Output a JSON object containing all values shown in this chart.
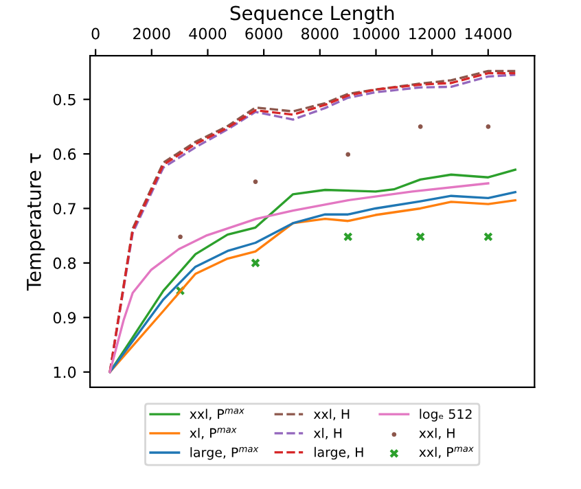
{
  "chart_data": {
    "type": "line",
    "xlabel": "Sequence Length",
    "ylabel": "Temperature τ",
    "xlim": [
      -196,
      15654
    ],
    "ylim": [
      1.028,
      0.42
    ],
    "xticks": [
      0,
      2000,
      4000,
      6000,
      8000,
      10000,
      12000,
      14000
    ],
    "yticks": [
      0.5,
      0.6,
      0.7,
      0.8,
      0.9,
      {
        "value": 1.0,
        "label": "1.0"
      }
    ],
    "grid": false,
    "legend": "bottom",
    "tick_labels": "xy",
    "series": [
      {
        "name": "xxl, P$^{max}$",
        "color": "#2ca02c",
        "marker": "none",
        "line_style": "solid",
        "x": [
          512,
          2418,
          3562,
          4706,
          5703,
          7042,
          8186,
          9984,
          10637,
          11585,
          12680,
          14003,
          14967
        ],
        "values": [
          1.0,
          0.851,
          0.784,
          0.748,
          0.735,
          0.674,
          0.666,
          0.669,
          0.665,
          0.647,
          0.638,
          0.643,
          0.629
        ]
      },
      {
        "name": "xl, P$^{max}$",
        "color": "#ff7f0e",
        "marker": "none",
        "line_style": "solid",
        "x": [
          512,
          2418,
          3562,
          4706,
          5703,
          7042,
          8186,
          9003,
          9984,
          11585,
          12680,
          14003,
          14967
        ],
        "values": [
          1.0,
          0.888,
          0.82,
          0.792,
          0.779,
          0.727,
          0.719,
          0.723,
          0.712,
          0.7,
          0.688,
          0.692,
          0.685
        ]
      },
      {
        "name": "large, P$^{max}$",
        "color": "#1f77b4",
        "marker": "none",
        "line_style": "solid",
        "x": [
          512,
          2418,
          3562,
          4706,
          5703,
          7042,
          8186,
          9003,
          9984,
          11585,
          12680,
          14003,
          14967
        ],
        "values": [
          1.0,
          0.867,
          0.807,
          0.778,
          0.763,
          0.727,
          0.711,
          0.711,
          0.7,
          0.687,
          0.677,
          0.681,
          0.67
        ]
      },
      {
        "name": "xxl, H",
        "color": "#8c564b",
        "marker": "none",
        "line_style": "dashed",
        "x": [
          512,
          1324,
          2418,
          3562,
          4706,
          5703,
          7042,
          8186,
          9003,
          9984,
          11585,
          12680,
          14003,
          14967
        ],
        "values": [
          1.0,
          0.737,
          0.616,
          0.578,
          0.549,
          0.515,
          0.522,
          0.507,
          0.49,
          0.482,
          0.471,
          0.465,
          0.448,
          0.448
        ]
      },
      {
        "name": "xl, H",
        "color": "#9467bd",
        "marker": "none",
        "line_style": "dashed",
        "x": [
          512,
          1324,
          2418,
          3562,
          4706,
          5703,
          7042,
          8186,
          9003,
          9984,
          11585,
          12680,
          14003,
          14967
        ],
        "values": [
          1.0,
          0.745,
          0.625,
          0.588,
          0.555,
          0.523,
          0.537,
          0.516,
          0.497,
          0.487,
          0.478,
          0.477,
          0.458,
          0.455
        ]
      },
      {
        "name": "large, H",
        "color": "#d62728",
        "marker": "none",
        "line_style": "dashed",
        "x": [
          512,
          1324,
          2418,
          3562,
          4706,
          5703,
          7042,
          8186,
          9003,
          9984,
          11585,
          12680,
          14003,
          14967
        ],
        "values": [
          1.0,
          0.74,
          0.62,
          0.582,
          0.552,
          0.52,
          0.528,
          0.51,
          0.493,
          0.482,
          0.473,
          0.47,
          0.452,
          0.452
        ]
      },
      {
        "name": "logₑ 512",
        "color": "#e377c2",
        "marker": "none",
        "line_style": "solid",
        "x": [
          512,
          1000,
          1324,
          1977,
          2958,
          3938,
          5735,
          7042,
          9003,
          11291,
          14003
        ],
        "values": [
          1.0,
          0.905,
          0.855,
          0.813,
          0.775,
          0.75,
          0.719,
          0.704,
          0.685,
          0.669,
          0.654
        ]
      },
      {
        "name": "xxl, H",
        "color": "#8c564b",
        "type": "scatter",
        "marker": "circle",
        "x": [
          3023,
          5703,
          9003,
          11585,
          14003
        ],
        "values": [
          0.752,
          0.651,
          0.601,
          0.55,
          0.55
        ]
      },
      {
        "name": "xxl, P$^{max}$",
        "color": "#2ca02c",
        "type": "scatter",
        "marker": "cross",
        "x": [
          3023,
          5703,
          9003,
          11585,
          14003
        ],
        "values": [
          0.851,
          0.8,
          0.752,
          0.752,
          0.752
        ]
      }
    ]
  }
}
